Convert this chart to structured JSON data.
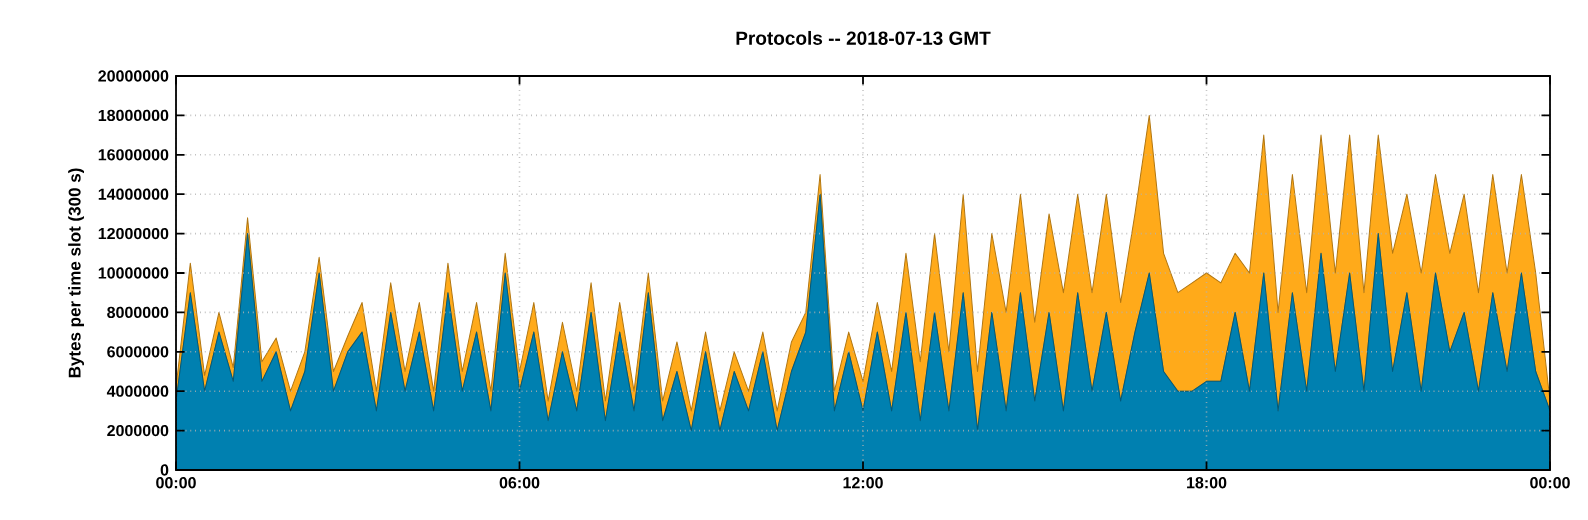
{
  "chart_data": {
    "type": "area",
    "stacked": true,
    "title": "Protocols -- 2018-07-13 GMT",
    "ylabel": "Bytes per time slot (300 s)",
    "x": [
      0,
      0.25,
      0.5,
      0.75,
      1,
      1.25,
      1.5,
      1.75,
      2,
      2.25,
      2.5,
      2.75,
      3,
      3.25,
      3.5,
      3.75,
      4,
      4.25,
      4.5,
      4.75,
      5,
      5.25,
      5.5,
      5.75,
      6,
      6.25,
      6.5,
      6.75,
      7,
      7.25,
      7.5,
      7.75,
      8,
      8.25,
      8.5,
      8.75,
      9,
      9.25,
      9.5,
      9.75,
      10,
      10.25,
      10.5,
      10.75,
      11,
      11.25,
      11.5,
      11.75,
      12,
      12.25,
      12.5,
      12.75,
      13,
      13.25,
      13.5,
      13.75,
      14,
      14.25,
      14.5,
      14.75,
      15,
      15.25,
      15.5,
      15.75,
      16,
      16.25,
      16.5,
      16.75,
      17,
      17.25,
      17.5,
      17.75,
      18,
      18.25,
      18.5,
      18.75,
      19,
      19.25,
      19.5,
      19.75,
      20,
      20.25,
      20.5,
      20.75,
      21,
      21.25,
      21.5,
      21.75,
      22,
      22.25,
      22.5,
      22.75,
      23,
      23.25,
      23.5,
      23.75,
      24
    ],
    "series": [
      {
        "color": "#0080b0",
        "values": [
          3500000,
          9000000,
          4000000,
          7000000,
          4500000,
          12000000,
          4500000,
          6000000,
          3000000,
          5000000,
          10000000,
          4000000,
          6000000,
          7000000,
          3000000,
          8000000,
          4000000,
          7000000,
          3000000,
          9000000,
          4000000,
          7000000,
          3000000,
          10000000,
          4000000,
          7000000,
          2500000,
          6000000,
          3000000,
          8000000,
          2500000,
          7000000,
          3000000,
          9000000,
          2500000,
          5000000,
          2000000,
          6000000,
          2000000,
          5000000,
          3000000,
          6000000,
          2000000,
          5000000,
          7000000,
          14000000,
          3000000,
          6000000,
          3000000,
          7000000,
          3000000,
          8000000,
          2500000,
          8000000,
          3000000,
          9000000,
          2000000,
          8000000,
          3000000,
          9000000,
          3500000,
          8000000,
          3000000,
          9000000,
          4000000,
          8000000,
          3500000,
          7000000,
          10000000,
          5000000,
          4000000,
          4000000,
          4500000,
          4500000,
          8000000,
          4000000,
          10000000,
          3000000,
          9000000,
          4000000,
          11000000,
          5000000,
          10000000,
          4000000,
          12000000,
          5000000,
          9000000,
          4000000,
          10000000,
          6000000,
          8000000,
          4000000,
          9000000,
          5000000,
          10000000,
          5000000,
          3000000
        ]
      },
      {
        "color": "#ffaa1a",
        "values": [
          700000,
          1500000,
          800000,
          1000000,
          700000,
          800000,
          1000000,
          700000,
          1000000,
          1000000,
          800000,
          1000000,
          800000,
          1500000,
          1000000,
          1500000,
          1000000,
          1500000,
          1000000,
          1500000,
          1000000,
          1500000,
          1000000,
          1000000,
          1000000,
          1500000,
          1000000,
          1500000,
          1000000,
          1500000,
          1000000,
          1500000,
          1000000,
          1000000,
          1000000,
          1500000,
          1000000,
          1000000,
          1000000,
          1000000,
          1000000,
          1000000,
          1000000,
          1500000,
          1000000,
          1000000,
          1000000,
          1000000,
          1500000,
          1500000,
          2000000,
          3000000,
          3000000,
          4000000,
          3000000,
          5000000,
          3000000,
          4000000,
          5000000,
          5000000,
          4000000,
          5000000,
          6000000,
          5000000,
          5000000,
          6000000,
          5000000,
          6000000,
          8000000,
          6000000,
          5000000,
          5500000,
          5500000,
          5000000,
          3000000,
          6000000,
          7000000,
          5000000,
          6000000,
          5000000,
          6000000,
          5000000,
          7000000,
          5000000,
          5000000,
          6000000,
          5000000,
          6000000,
          5000000,
          5000000,
          6000000,
          5000000,
          6000000,
          5000000,
          5000000,
          5000000,
          500000
        ]
      }
    ],
    "xlim": [
      0,
      24
    ],
    "ylim": [
      0,
      20000000
    ],
    "xticks": [
      {
        "value": 0,
        "label": "00:00"
      },
      {
        "value": 6,
        "label": "06:00"
      },
      {
        "value": 12,
        "label": "12:00"
      },
      {
        "value": 18,
        "label": "18:00"
      },
      {
        "value": 24,
        "label": "00:00"
      }
    ],
    "yticks": [
      0,
      2000000,
      4000000,
      6000000,
      8000000,
      10000000,
      12000000,
      14000000,
      16000000,
      18000000,
      20000000
    ],
    "grid": true
  }
}
